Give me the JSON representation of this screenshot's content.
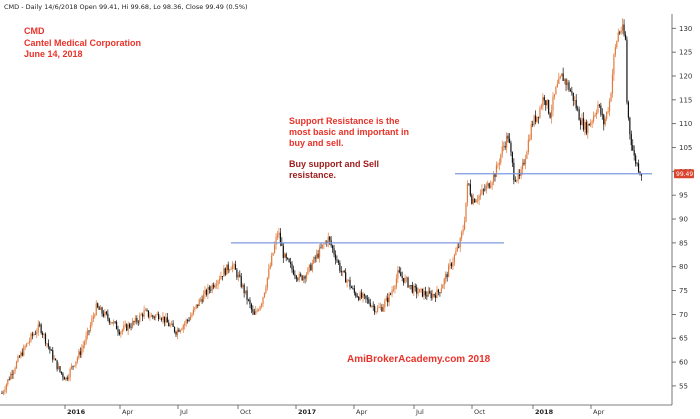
{
  "header": {
    "text": "CMD - Daily 14/6/2018 Open 99.41, Hi 99.68, Lo 98.36, Close 99.49 (0.5%)"
  },
  "annotations": {
    "ticker": "CMD",
    "company": "Cantel Medical Corporation",
    "date": "June 14, 2018",
    "support_note_lines": [
      "Support Resistance is the",
      "most basic and important in",
      "buy and sell."
    ],
    "buy_note_lines": [
      "Buy support and Sell",
      "resistance."
    ],
    "brand": "AmiBrokerAcademy.com  2018"
  },
  "colors": {
    "up": "#e07a3c",
    "down": "#111111",
    "level_line": "#7f99e0",
    "price_tag": "#d9442f",
    "annotation_red": "#e8332a",
    "annotation_dark": "#9c1a1a"
  },
  "chart_data": {
    "type": "line",
    "style": "candlestick",
    "ylim": [
      51,
      133
    ],
    "yticks": [
      55,
      60,
      65,
      70,
      75,
      80,
      85,
      90,
      95,
      100,
      105,
      110,
      115,
      120,
      125,
      130
    ],
    "xlim": [
      0,
      640
    ],
    "xticks": [
      {
        "x": 63,
        "label": "2016",
        "bold": true
      },
      {
        "x": 118,
        "label": "Apr",
        "bold": false
      },
      {
        "x": 176,
        "label": "Jul",
        "bold": false
      },
      {
        "x": 236,
        "label": "Oct",
        "bold": false
      },
      {
        "x": 294,
        "label": "2017",
        "bold": true
      },
      {
        "x": 352,
        "label": "Apr",
        "bold": false
      },
      {
        "x": 412,
        "label": "Jul",
        "bold": false
      },
      {
        "x": 470,
        "label": "Oct",
        "bold": false
      },
      {
        "x": 531,
        "label": "2018",
        "bold": true
      },
      {
        "x": 589,
        "label": "Apr",
        "bold": false
      }
    ],
    "last_price": "99.49",
    "levels": [
      {
        "name": "resistance",
        "value": 85,
        "x_start": 231,
        "x_end": 504
      },
      {
        "name": "support",
        "value": 99.5,
        "x_start": 455,
        "x_end": 652
      }
    ],
    "anchors": [
      [
        0,
        53.5
      ],
      [
        10,
        58
      ],
      [
        20,
        62
      ],
      [
        30,
        65.5
      ],
      [
        38,
        67.5
      ],
      [
        45,
        64
      ],
      [
        52,
        60.5
      ],
      [
        58,
        58
      ],
      [
        64,
        56.5
      ],
      [
        70,
        59
      ],
      [
        78,
        62
      ],
      [
        86,
        66
      ],
      [
        94,
        71.5
      ],
      [
        102,
        70
      ],
      [
        110,
        68.5
      ],
      [
        118,
        66.5
      ],
      [
        126,
        67.5
      ],
      [
        134,
        68.5
      ],
      [
        142,
        70.5
      ],
      [
        150,
        69.5
      ],
      [
        158,
        70
      ],
      [
        166,
        68
      ],
      [
        174,
        66.5
      ],
      [
        182,
        68
      ],
      [
        190,
        70
      ],
      [
        198,
        73
      ],
      [
        206,
        75
      ],
      [
        214,
        77
      ],
      [
        222,
        79
      ],
      [
        230,
        80.5
      ],
      [
        236,
        78
      ],
      [
        244,
        74
      ],
      [
        252,
        69.5
      ],
      [
        260,
        73
      ],
      [
        268,
        80
      ],
      [
        276,
        87.5
      ],
      [
        282,
        82
      ],
      [
        290,
        79.5
      ],
      [
        298,
        77.5
      ],
      [
        306,
        79
      ],
      [
        314,
        82
      ],
      [
        320,
        84
      ],
      [
        326,
        86
      ],
      [
        334,
        82
      ],
      [
        340,
        78.5
      ],
      [
        346,
        77
      ],
      [
        352,
        74.5
      ],
      [
        360,
        73.5
      ],
      [
        368,
        72.5
      ],
      [
        374,
        71
      ],
      [
        380,
        71.5
      ],
      [
        388,
        74
      ],
      [
        396,
        78.5
      ],
      [
        404,
        77
      ],
      [
        412,
        75
      ],
      [
        420,
        74.5
      ],
      [
        428,
        74
      ],
      [
        436,
        74.5
      ],
      [
        442,
        77
      ],
      [
        450,
        81
      ],
      [
        458,
        85
      ],
      [
        462,
        89
      ],
      [
        466,
        98
      ],
      [
        470,
        94
      ],
      [
        478,
        95
      ],
      [
        486,
        97
      ],
      [
        494,
        100
      ],
      [
        500,
        104.5
      ],
      [
        506,
        107.5
      ],
      [
        512,
        99
      ],
      [
        518,
        98.5
      ],
      [
        524,
        104
      ],
      [
        530,
        110
      ],
      [
        536,
        112
      ],
      [
        542,
        116
      ],
      [
        548,
        112
      ],
      [
        554,
        117
      ],
      [
        560,
        120
      ],
      [
        566,
        118
      ],
      [
        572,
        115
      ],
      [
        578,
        111
      ],
      [
        584,
        109
      ],
      [
        590,
        111
      ],
      [
        596,
        114
      ],
      [
        602,
        110
      ],
      [
        608,
        115
      ],
      [
        612,
        124
      ],
      [
        616,
        129
      ],
      [
        620,
        130
      ],
      [
        624,
        127
      ],
      [
        625,
        114
      ],
      [
        628,
        108
      ],
      [
        632,
        103
      ],
      [
        636,
        101
      ],
      [
        640,
        99.5
      ]
    ]
  }
}
